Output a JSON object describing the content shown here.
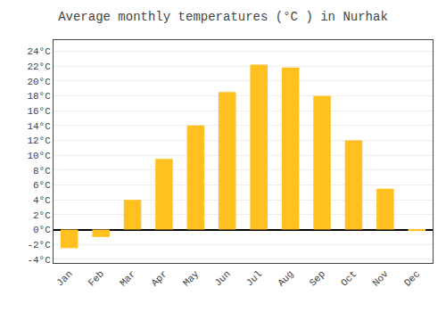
{
  "chart_data": {
    "type": "bar",
    "title": "Average monthly temperatures (°C ) in Nurhak",
    "categories": [
      "Jan",
      "Feb",
      "Mar",
      "Apr",
      "May",
      "Jun",
      "Jul",
      "Aug",
      "Sep",
      "Oct",
      "Nov",
      "Dec"
    ],
    "values": [
      -2.5,
      -1.0,
      4.0,
      9.5,
      14.0,
      18.5,
      22.2,
      21.8,
      18.0,
      12.0,
      5.5,
      -0.2
    ],
    "color": "#FFC020",
    "ylim": [
      -4.5,
      25.5
    ],
    "yticks": [
      {
        "value": -4,
        "label": "-4°C"
      },
      {
        "value": -2,
        "label": "-2°C"
      },
      {
        "value": 0,
        "label": "0°C"
      },
      {
        "value": 2,
        "label": "2°C"
      },
      {
        "value": 4,
        "label": "4°C"
      },
      {
        "value": 6,
        "label": "6°C"
      },
      {
        "value": 8,
        "label": "8°C"
      },
      {
        "value": 10,
        "label": "10°C"
      },
      {
        "value": 12,
        "label": "12°C"
      },
      {
        "value": 14,
        "label": "14°C"
      },
      {
        "value": 16,
        "label": "16°C"
      },
      {
        "value": 18,
        "label": "18°C"
      },
      {
        "value": 20,
        "label": "20°C"
      },
      {
        "value": 22,
        "label": "22°C"
      },
      {
        "value": 24,
        "label": "24°C"
      }
    ],
    "grid": true
  }
}
